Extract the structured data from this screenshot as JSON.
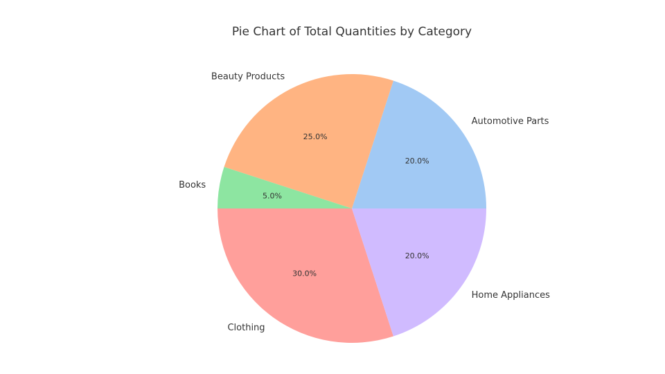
{
  "chart_data": {
    "type": "pie",
    "title": "Pie Chart of Total Quantities by Category",
    "categories": [
      "Automotive Parts",
      "Beauty Products",
      "Books",
      "Clothing",
      "Home Appliances"
    ],
    "values": [
      20.0,
      25.0,
      5.0,
      30.0,
      20.0
    ],
    "percent_labels": [
      "20.0%",
      "25.0%",
      "5.0%",
      "30.0%",
      "20.0%"
    ],
    "colors": [
      "#a1c9f4",
      "#ffb482",
      "#8de5a1",
      "#ff9f9b",
      "#d0bbff"
    ],
    "start_angle_deg": 0,
    "direction": "counterclockwise",
    "legend": "none"
  }
}
